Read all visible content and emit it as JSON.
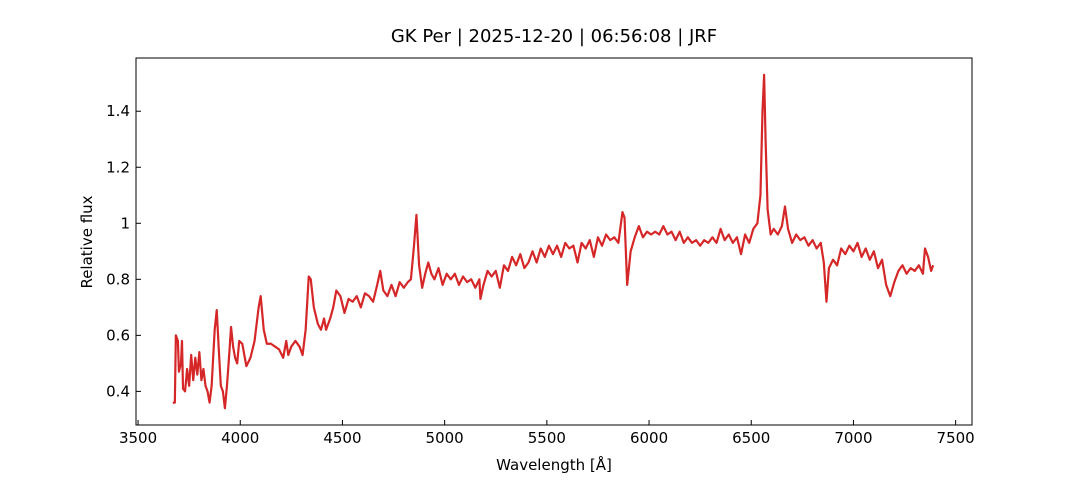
{
  "chart_data": {
    "type": "line",
    "title": "GK Per | 2025-12-20 | 06:56:08 | JRF",
    "x_label": "Wavelength [Å]",
    "y_label": "Relative flux",
    "xlim": [
      3490,
      7580
    ],
    "ylim": [
      0.28,
      1.59
    ],
    "xticks": [
      3500,
      4000,
      4500,
      5000,
      5500,
      6000,
      6500,
      7000,
      7500
    ],
    "yticks": [
      0.4,
      0.6,
      0.8,
      1.0,
      1.2,
      1.4
    ],
    "grid": false,
    "series": [
      {
        "name": "GK Per",
        "color": "#d62728",
        "x": [
          3670,
          3680,
          3685,
          3695,
          3700,
          3710,
          3715,
          3720,
          3730,
          3740,
          3750,
          3760,
          3770,
          3780,
          3790,
          3800,
          3810,
          3820,
          3830,
          3840,
          3850,
          3860,
          3875,
          3885,
          3895,
          3905,
          3915,
          3925,
          3935,
          3945,
          3955,
          3965,
          3975,
          3985,
          3995,
          4010,
          4030,
          4050,
          4070,
          4090,
          4100,
          4115,
          4130,
          4150,
          4170,
          4190,
          4210,
          4225,
          4235,
          4250,
          4270,
          4290,
          4305,
          4320,
          4335,
          4345,
          4360,
          4380,
          4395,
          4410,
          4420,
          4440,
          4455,
          4470,
          4490,
          4510,
          4530,
          4550,
          4570,
          4590,
          4610,
          4630,
          4650,
          4670,
          4685,
          4700,
          4720,
          4740,
          4760,
          4780,
          4800,
          4820,
          4835,
          4850,
          4862,
          4875,
          4890,
          4905,
          4920,
          4935,
          4950,
          4970,
          4990,
          5010,
          5030,
          5050,
          5070,
          5090,
          5110,
          5130,
          5150,
          5170,
          5175,
          5190,
          5210,
          5230,
          5250,
          5270,
          5290,
          5310,
          5330,
          5350,
          5370,
          5390,
          5410,
          5430,
          5450,
          5470,
          5490,
          5510,
          5530,
          5550,
          5570,
          5590,
          5610,
          5630,
          5650,
          5670,
          5690,
          5710,
          5730,
          5750,
          5770,
          5790,
          5810,
          5830,
          5850,
          5870,
          5880,
          5893,
          5910,
          5930,
          5950,
          5970,
          5990,
          6010,
          6030,
          6050,
          6070,
          6090,
          6110,
          6130,
          6150,
          6170,
          6190,
          6210,
          6230,
          6250,
          6270,
          6290,
          6310,
          6330,
          6350,
          6370,
          6390,
          6410,
          6430,
          6450,
          6470,
          6490,
          6510,
          6530,
          6545,
          6555,
          6563,
          6570,
          6580,
          6595,
          6610,
          6630,
          6650,
          6665,
          6680,
          6700,
          6720,
          6740,
          6760,
          6780,
          6800,
          6820,
          6840,
          6855,
          6868,
          6880,
          6900,
          6920,
          6940,
          6960,
          6980,
          7000,
          7020,
          7040,
          7060,
          7080,
          7100,
          7120,
          7140,
          7160,
          7180,
          7200,
          7220,
          7240,
          7260,
          7280,
          7300,
          7320,
          7340,
          7350,
          7365,
          7380,
          7390
        ],
        "values": [
          0.36,
          0.36,
          0.6,
          0.58,
          0.47,
          0.5,
          0.58,
          0.41,
          0.4,
          0.48,
          0.42,
          0.53,
          0.44,
          0.52,
          0.46,
          0.54,
          0.44,
          0.48,
          0.42,
          0.4,
          0.36,
          0.42,
          0.62,
          0.69,
          0.55,
          0.42,
          0.4,
          0.34,
          0.42,
          0.52,
          0.63,
          0.56,
          0.52,
          0.5,
          0.58,
          0.57,
          0.49,
          0.52,
          0.58,
          0.7,
          0.74,
          0.62,
          0.57,
          0.57,
          0.56,
          0.55,
          0.52,
          0.58,
          0.53,
          0.56,
          0.58,
          0.56,
          0.53,
          0.62,
          0.81,
          0.8,
          0.7,
          0.64,
          0.62,
          0.66,
          0.62,
          0.66,
          0.7,
          0.76,
          0.74,
          0.68,
          0.73,
          0.72,
          0.74,
          0.7,
          0.75,
          0.74,
          0.72,
          0.78,
          0.83,
          0.76,
          0.74,
          0.78,
          0.74,
          0.79,
          0.77,
          0.79,
          0.8,
          0.92,
          1.03,
          0.85,
          0.77,
          0.82,
          0.86,
          0.82,
          0.8,
          0.84,
          0.78,
          0.82,
          0.8,
          0.82,
          0.78,
          0.81,
          0.79,
          0.8,
          0.77,
          0.8,
          0.73,
          0.78,
          0.83,
          0.81,
          0.83,
          0.77,
          0.85,
          0.83,
          0.88,
          0.85,
          0.89,
          0.84,
          0.86,
          0.9,
          0.86,
          0.91,
          0.88,
          0.92,
          0.89,
          0.92,
          0.88,
          0.93,
          0.91,
          0.92,
          0.86,
          0.93,
          0.91,
          0.94,
          0.88,
          0.95,
          0.92,
          0.96,
          0.94,
          0.95,
          0.93,
          1.04,
          1.02,
          0.78,
          0.9,
          0.95,
          0.99,
          0.95,
          0.97,
          0.96,
          0.97,
          0.96,
          0.99,
          0.96,
          0.97,
          0.94,
          0.97,
          0.93,
          0.95,
          0.93,
          0.94,
          0.92,
          0.94,
          0.93,
          0.95,
          0.93,
          0.98,
          0.94,
          0.96,
          0.93,
          0.95,
          0.89,
          0.96,
          0.93,
          0.98,
          1.0,
          1.1,
          1.4,
          1.53,
          1.3,
          1.05,
          0.96,
          0.98,
          0.96,
          0.99,
          1.06,
          0.98,
          0.93,
          0.96,
          0.94,
          0.95,
          0.92,
          0.94,
          0.91,
          0.93,
          0.86,
          0.72,
          0.84,
          0.87,
          0.85,
          0.91,
          0.89,
          0.92,
          0.9,
          0.93,
          0.88,
          0.91,
          0.87,
          0.9,
          0.84,
          0.87,
          0.78,
          0.74,
          0.79,
          0.83,
          0.85,
          0.82,
          0.84,
          0.83,
          0.85,
          0.82,
          0.91,
          0.88,
          0.83,
          0.85
        ]
      }
    ]
  }
}
